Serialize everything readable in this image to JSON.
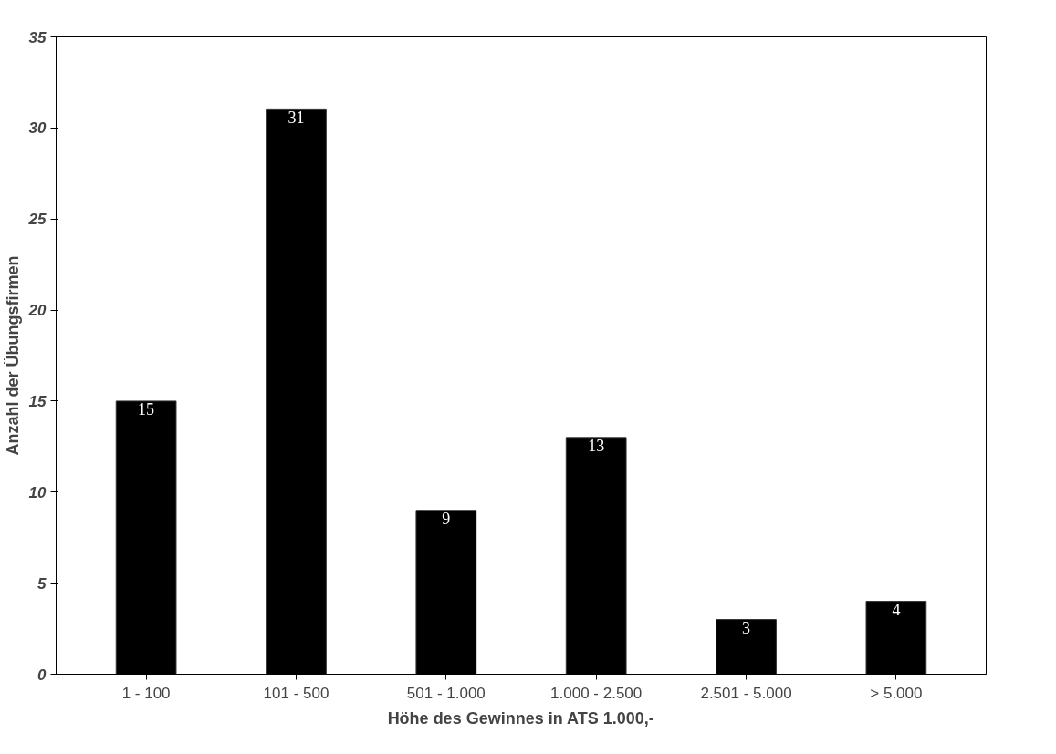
{
  "chart_data": {
    "type": "bar",
    "xlabel": "Höhe des Gewinnes in ATS 1.000,-",
    "ylabel": "Anzahl der Übungsfirmen",
    "categories": [
      "1 - 100",
      "101 - 500",
      "501 - 1.000",
      "1.000 - 2.500",
      "2.501 - 5.000",
      "> 5.000"
    ],
    "values": [
      15,
      31,
      9,
      13,
      3,
      4
    ],
    "color": "#000000",
    "ylim": [
      0,
      35
    ],
    "yticks": [
      0,
      5,
      10,
      15,
      20,
      25,
      30,
      35
    ],
    "grid": false,
    "data_labels": true
  }
}
